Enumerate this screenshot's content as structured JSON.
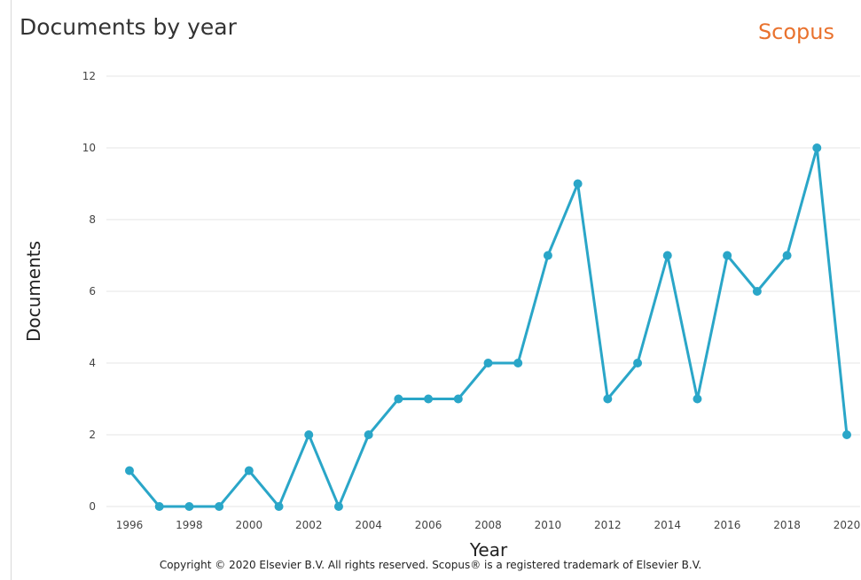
{
  "header": {
    "title": "Documents by year",
    "brand": "Scopus"
  },
  "footer": {
    "copyright": "Copyright © 2020 Elsevier B.V. All rights reserved. Scopus® is a registered trademark of Elsevier B.V."
  },
  "colors": {
    "line": "#2aa6c8",
    "grid": "#e6e6e6",
    "brand": "#e9722e",
    "text": "#333333"
  },
  "chart_data": {
    "type": "line",
    "xlabel": "Year",
    "ylabel": "Documents",
    "xlim": [
      1996,
      2020
    ],
    "ylim": [
      0,
      12
    ],
    "x_ticks": [
      1996,
      1998,
      2000,
      2002,
      2004,
      2006,
      2008,
      2010,
      2012,
      2014,
      2016,
      2018,
      2020
    ],
    "y_ticks": [
      0,
      2,
      4,
      6,
      8,
      10,
      12
    ],
    "grid": true,
    "x": [
      1996,
      1997,
      1998,
      1999,
      2000,
      2001,
      2002,
      2003,
      2004,
      2005,
      2006,
      2007,
      2008,
      2009,
      2010,
      2011,
      2012,
      2013,
      2014,
      2015,
      2016,
      2017,
      2018,
      2019,
      2020
    ],
    "y": [
      1,
      0,
      0,
      0,
      1,
      0,
      2,
      0,
      2,
      3,
      3,
      3,
      4,
      4,
      7,
      9,
      3,
      4,
      7,
      3,
      7,
      6,
      7,
      10,
      2
    ]
  }
}
